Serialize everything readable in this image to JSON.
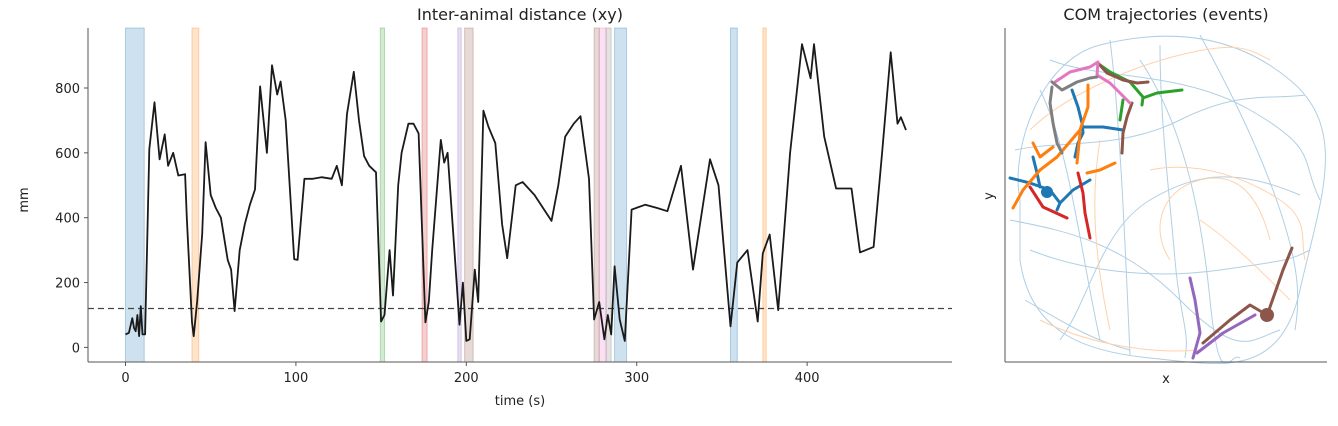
{
  "chart_data": [
    {
      "type": "line",
      "title": "Inter-animal distance (xy)",
      "xlabel": "time (s)",
      "ylabel": "mm",
      "xlim": [
        -22,
        485
      ],
      "ylim": [
        -45,
        985
      ],
      "xticks": [
        "0",
        "100",
        "200",
        "300",
        "400"
      ],
      "yticks": [
        "0",
        "200",
        "400",
        "600",
        "800"
      ],
      "grid": false,
      "threshold": {
        "value": 120,
        "style": "dashed",
        "color": "#444444"
      },
      "line_color": "#1a1a1a",
      "series": [
        {
          "x": [
            0,
            2,
            4,
            5,
            6,
            7,
            8,
            9,
            10,
            11.5,
            14,
            17,
            20,
            23,
            25,
            28,
            31,
            35,
            36,
            39,
            40,
            42,
            45,
            47,
            50,
            53,
            56,
            60,
            62,
            64,
            67,
            70,
            73,
            76,
            79,
            83,
            86,
            89,
            91,
            94,
            99,
            101,
            105,
            110,
            115,
            121,
            124,
            127,
            130,
            134,
            137,
            140,
            143,
            147,
            150,
            152,
            155,
            157,
            160,
            162,
            166,
            169,
            172,
            176,
            178,
            180,
            185,
            187,
            189,
            193,
            196,
            198,
            200,
            202,
            205,
            207,
            210,
            213,
            217,
            221,
            224,
            229,
            233,
            240,
            250,
            254,
            258,
            263,
            267,
            272,
            275,
            278,
            281,
            283,
            285,
            287,
            290,
            293,
            297,
            305,
            312,
            318,
            326,
            333,
            343,
            348,
            355,
            359,
            365,
            371,
            374,
            378,
            383,
            390,
            397,
            402,
            404,
            410,
            417,
            426,
            431,
            439,
            444,
            449,
            453,
            455,
            458
          ],
          "y": [
            40,
            45,
            90,
            60,
            50,
            100,
            35,
            127,
            40,
            40,
            611,
            756,
            580,
            657,
            560,
            600,
            530,
            534,
            400,
            77,
            35,
            140,
            350,
            633,
            470,
            430,
            400,
            270,
            240,
            112,
            300,
            380,
            440,
            487,
            805,
            600,
            870,
            780,
            820,
            700,
            272,
            270,
            520,
            520,
            525,
            520,
            560,
            500,
            720,
            850,
            700,
            590,
            560,
            540,
            80,
            100,
            300,
            160,
            500,
            600,
            690,
            690,
            660,
            77,
            140,
            300,
            640,
            570,
            600,
            300,
            70,
            200,
            20,
            25,
            240,
            140,
            730,
            680,
            630,
            380,
            275,
            500,
            510,
            470,
            390,
            500,
            650,
            690,
            713,
            520,
            86,
            140,
            25,
            100,
            40,
            250,
            86,
            20,
            425,
            440,
            430,
            420,
            560,
            240,
            580,
            500,
            65,
            262,
            300,
            80,
            290,
            348,
            115,
            600,
            935,
            830,
            935,
            650,
            490,
            490,
            293,
            310,
            600,
            910,
            690,
            710,
            670
          ]
        }
      ],
      "event_spans": [
        {
          "start": 0,
          "end": 11,
          "color": "#1f77b4"
        },
        {
          "start": 39,
          "end": 43,
          "color": "#ff7f0e"
        },
        {
          "start": 149.5,
          "end": 152,
          "color": "#2ca02c"
        },
        {
          "start": 174,
          "end": 177,
          "color": "#d62728"
        },
        {
          "start": 195,
          "end": 197,
          "color": "#9467bd"
        },
        {
          "start": 199,
          "end": 204,
          "color": "#8c564b"
        },
        {
          "start": 275,
          "end": 278,
          "color": "#8c564b"
        },
        {
          "start": 278,
          "end": 282,
          "color": "#e377c2"
        },
        {
          "start": 282,
          "end": 285,
          "color": "#7f7f7f"
        },
        {
          "start": 287,
          "end": 294,
          "color": "#1f77b4"
        },
        {
          "start": 355,
          "end": 359,
          "color": "#1f77b4"
        },
        {
          "start": 374,
          "end": 376,
          "color": "#ff7f0e"
        }
      ]
    },
    {
      "type": "line",
      "title": "COM trajectories (events)",
      "xlabel": "x",
      "ylabel": "y",
      "grid": false,
      "background_traces": {
        "colors": [
          "#1f77b4",
          "#ff7f0e"
        ]
      },
      "event_colors": [
        "#1f77b4",
        "#ff7f0e",
        "#2ca02c",
        "#d62728",
        "#9467bd",
        "#8c564b",
        "#e377c2",
        "#7f7f7f"
      ]
    }
  ]
}
